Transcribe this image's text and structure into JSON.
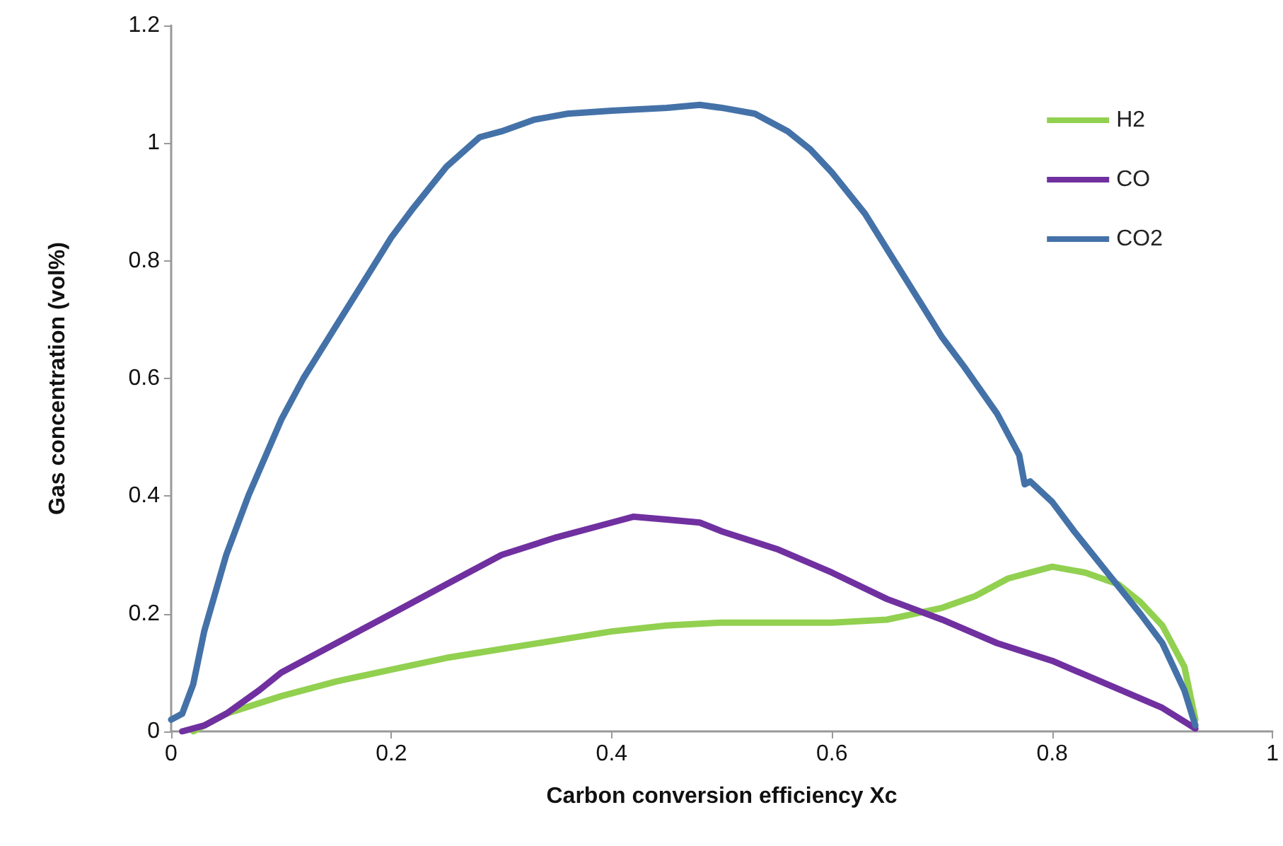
{
  "chart_data": {
    "type": "line",
    "xlabel": "Carbon conversion efficiency Xc",
    "ylabel": "Gas concentration (vol%)",
    "xlim": [
      0,
      1
    ],
    "xticks": [
      0,
      0.2,
      0.4,
      0.6,
      0.8,
      1
    ],
    "ylim": [
      0,
      1.2
    ],
    "yticks": [
      0,
      0.2,
      0.4,
      0.6,
      0.8,
      1,
      1.2
    ],
    "grid": false,
    "legend": "top right",
    "marker": "none",
    "line_style": "solid",
    "series": [
      {
        "name": "H2",
        "color": "#92d050",
        "x": [
          0.02,
          0.05,
          0.1,
          0.15,
          0.2,
          0.25,
          0.3,
          0.35,
          0.4,
          0.45,
          0.5,
          0.55,
          0.6,
          0.65,
          0.7,
          0.73,
          0.76,
          0.78,
          0.8,
          0.83,
          0.86,
          0.88,
          0.9,
          0.92,
          0.93
        ],
        "values": [
          0,
          0.03,
          0.06,
          0.085,
          0.105,
          0.125,
          0.14,
          0.155,
          0.17,
          0.18,
          0.185,
          0.185,
          0.185,
          0.19,
          0.21,
          0.23,
          0.26,
          0.27,
          0.28,
          0.27,
          0.25,
          0.22,
          0.18,
          0.11,
          0.02
        ]
      },
      {
        "name": "CO",
        "color": "#7030a0",
        "x": [
          0.01,
          0.03,
          0.05,
          0.08,
          0.1,
          0.15,
          0.2,
          0.25,
          0.3,
          0.35,
          0.4,
          0.42,
          0.45,
          0.48,
          0.5,
          0.55,
          0.6,
          0.65,
          0.7,
          0.75,
          0.8,
          0.85,
          0.9,
          0.93
        ],
        "values": [
          0,
          0.01,
          0.03,
          0.07,
          0.1,
          0.15,
          0.2,
          0.25,
          0.3,
          0.33,
          0.355,
          0.365,
          0.36,
          0.355,
          0.34,
          0.31,
          0.27,
          0.225,
          0.19,
          0.15,
          0.12,
          0.08,
          0.04,
          0.005
        ]
      },
      {
        "name": "CO2",
        "color": "#4472a8",
        "x": [
          0,
          0.01,
          0.02,
          0.03,
          0.05,
          0.07,
          0.1,
          0.12,
          0.15,
          0.18,
          0.2,
          0.22,
          0.25,
          0.28,
          0.3,
          0.33,
          0.36,
          0.4,
          0.45,
          0.48,
          0.5,
          0.53,
          0.56,
          0.58,
          0.6,
          0.63,
          0.65,
          0.68,
          0.7,
          0.72,
          0.75,
          0.77,
          0.775,
          0.78,
          0.8,
          0.82,
          0.85,
          0.88,
          0.9,
          0.92,
          0.93
        ],
        "values": [
          0.02,
          0.03,
          0.08,
          0.17,
          0.3,
          0.4,
          0.53,
          0.6,
          0.69,
          0.78,
          0.84,
          0.89,
          0.96,
          1.01,
          1.02,
          1.04,
          1.05,
          1.055,
          1.06,
          1.065,
          1.06,
          1.05,
          1.02,
          0.99,
          0.95,
          0.88,
          0.82,
          0.73,
          0.67,
          0.62,
          0.54,
          0.47,
          0.42,
          0.425,
          0.39,
          0.34,
          0.27,
          0.2,
          0.15,
          0.07,
          0.01
        ]
      }
    ]
  }
}
